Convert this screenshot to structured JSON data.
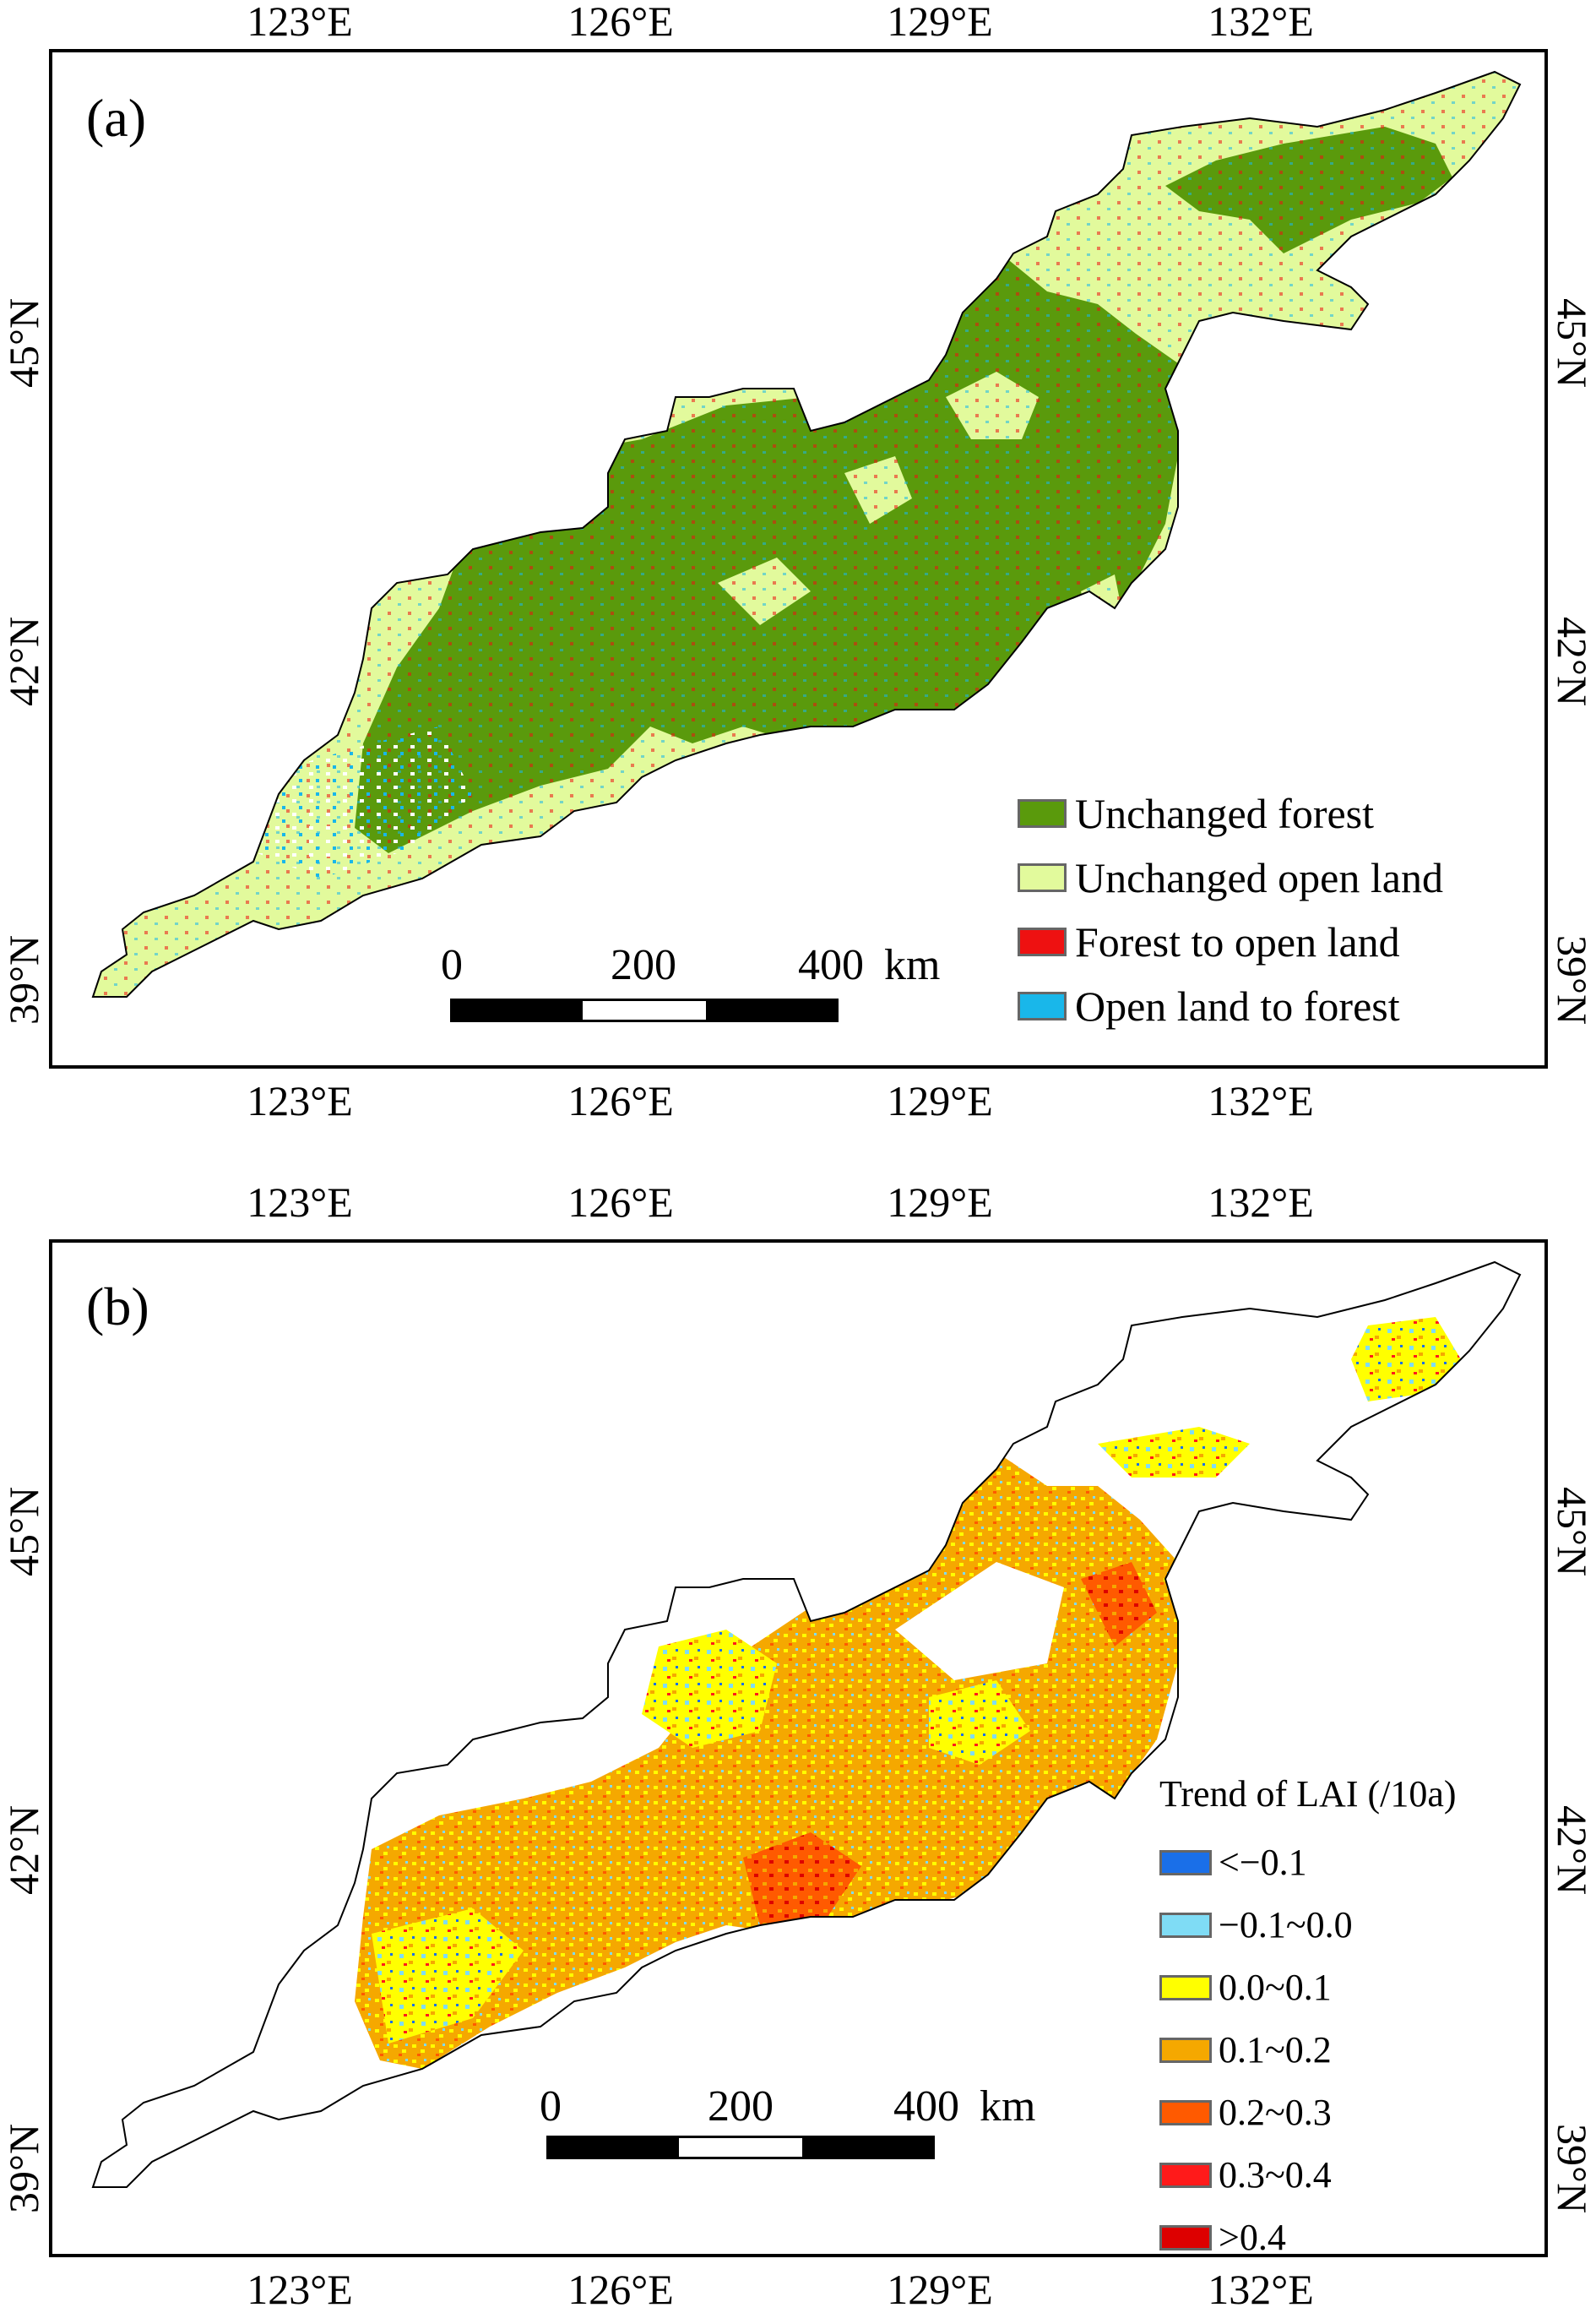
{
  "panels": [
    {
      "id": "a",
      "label": "(a)",
      "lon_ticks": [
        "123°E",
        "126°E",
        "129°E",
        "132°E"
      ],
      "lat_ticks": [
        "45°N",
        "42°N",
        "39°N"
      ],
      "legend": {
        "title": "",
        "items": [
          {
            "label": "Unchanged forest",
            "color": "#5a9a0c"
          },
          {
            "label": "Unchanged open land",
            "color": "#e2fa9c"
          },
          {
            "label": "Forest to open land",
            "color": "#ee1111"
          },
          {
            "label": "Open land to forest",
            "color": "#19b7ea"
          }
        ]
      },
      "scale_bar": {
        "labels": [
          "0",
          "200",
          "400"
        ],
        "unit": "km"
      }
    },
    {
      "id": "b",
      "label": "(b)",
      "lon_ticks": [
        "123°E",
        "126°E",
        "129°E",
        "132°E"
      ],
      "lat_ticks": [
        "45°N",
        "42°N",
        "39°N"
      ],
      "legend": {
        "title": "Trend of  LAI (/10a)",
        "items": [
          {
            "label": "<−0.1",
            "color": "#1a6fe8"
          },
          {
            "label": "−0.1~0.0",
            "color": "#7fdcf5"
          },
          {
            "label": "0.0~0.1",
            "color": "#ffff00"
          },
          {
            "label": "0.1~0.2",
            "color": "#f5a800"
          },
          {
            "label": "0.2~0.3",
            "color": "#ff5a00"
          },
          {
            "label": "0.3~0.4",
            "color": "#ff1a1a"
          },
          {
            "label": ">0.4",
            "color": "#dd0000"
          }
        ]
      },
      "scale_bar": {
        "labels": [
          "0",
          "200",
          "400"
        ],
        "unit": "km"
      }
    }
  ],
  "colors": {
    "outline": "#000000",
    "background": "#ffffff"
  }
}
